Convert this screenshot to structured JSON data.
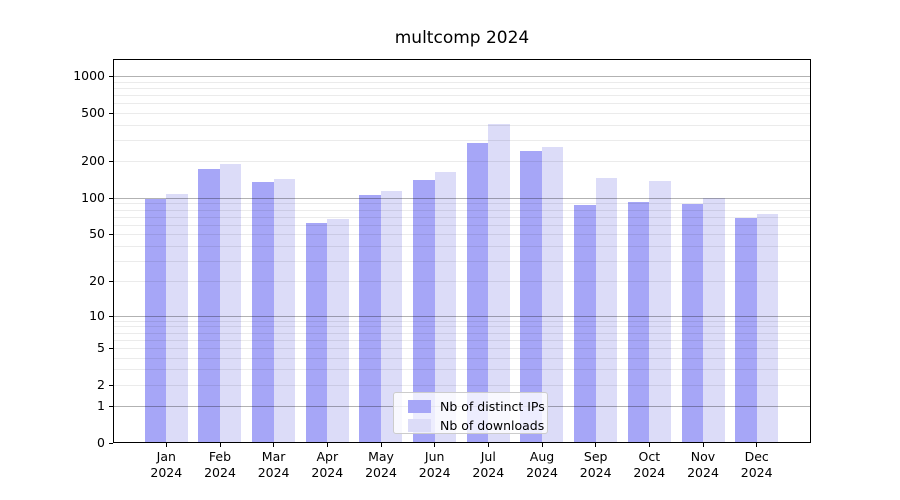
{
  "title": "multcomp 2024",
  "year_label": "2024",
  "legend": {
    "items": [
      {
        "label": "Nb of distinct IPs",
        "color": "#a6a6f7"
      },
      {
        "label": "Nb of downloads",
        "color": "#dcdcf8"
      }
    ]
  },
  "chart_data": {
    "type": "bar",
    "title": "multcomp 2024",
    "categories": [
      "Jan",
      "Feb",
      "Mar",
      "Apr",
      "May",
      "Jun",
      "Jul",
      "Aug",
      "Sep",
      "Oct",
      "Nov",
      "Dec"
    ],
    "year": "2024",
    "series": [
      {
        "name": "Nb of distinct IPs",
        "color": "#a6a6f7",
        "values": [
          98,
          172,
          136,
          62,
          105,
          140,
          285,
          245,
          88,
          93,
          89,
          68
        ]
      },
      {
        "name": "Nb of downloads",
        "color": "#dcdcf8",
        "values": [
          107,
          190,
          143,
          67,
          113,
          164,
          405,
          260,
          147,
          138,
          100,
          73
        ]
      }
    ],
    "xlabel": "",
    "ylabel": "",
    "yscale": "log10(value+1), zero pinned to baseline",
    "yticks": [
      0,
      1,
      2,
      5,
      10,
      20,
      50,
      100,
      200,
      500,
      1000
    ],
    "ylim": [
      0,
      1380
    ],
    "grid": {
      "enabled": true,
      "major_values": [
        1,
        10,
        100,
        1000
      ],
      "minor_values": [
        2,
        3,
        4,
        5,
        6,
        7,
        8,
        9,
        20,
        30,
        40,
        50,
        60,
        70,
        80,
        90,
        200,
        300,
        400,
        500,
        600,
        700,
        800,
        900
      ],
      "major_color": "rgba(0,0,0,0.30)",
      "minor_color": "rgba(0,0,0,0.08)"
    },
    "legend_position": "lower center"
  }
}
